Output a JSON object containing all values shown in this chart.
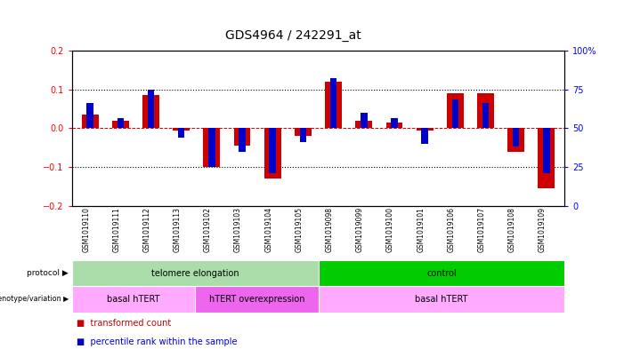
{
  "title": "GDS4964 / 242291_at",
  "samples": [
    "GSM1019110",
    "GSM1019111",
    "GSM1019112",
    "GSM1019113",
    "GSM1019102",
    "GSM1019103",
    "GSM1019104",
    "GSM1019105",
    "GSM1019098",
    "GSM1019099",
    "GSM1019100",
    "GSM1019101",
    "GSM1019106",
    "GSM1019107",
    "GSM1019108",
    "GSM1019109"
  ],
  "red_values": [
    0.035,
    0.02,
    0.085,
    -0.005,
    -0.1,
    -0.045,
    -0.13,
    -0.02,
    0.12,
    0.02,
    0.015,
    -0.005,
    0.09,
    0.09,
    -0.06,
    -0.155
  ],
  "blue_values_norm": [
    0.065,
    0.025,
    0.1,
    -0.025,
    -0.1,
    -0.06,
    -0.115,
    -0.035,
    0.13,
    0.04,
    0.025,
    -0.04,
    0.075,
    0.065,
    -0.048,
    -0.115
  ],
  "ylim": [
    -0.2,
    0.2
  ],
  "yticks_left": [
    -0.2,
    -0.1,
    0.0,
    0.1,
    0.2
  ],
  "right_tick_positions": [
    -0.2,
    -0.1,
    0.0,
    0.1,
    0.2
  ],
  "right_tick_labels": [
    "0",
    "25",
    "50",
    "75",
    "100%"
  ],
  "protocol_groups": [
    {
      "label": "telomere elongation",
      "start": 0,
      "end": 8,
      "color": "#aaddaa"
    },
    {
      "label": "control",
      "start": 8,
      "end": 16,
      "color": "#00cc00"
    }
  ],
  "genotype_groups": [
    {
      "label": "basal hTERT",
      "start": 0,
      "end": 4,
      "color": "#ffaaff"
    },
    {
      "label": "hTERT overexpression",
      "start": 4,
      "end": 8,
      "color": "#ee66ee"
    },
    {
      "label": "basal hTERT",
      "start": 8,
      "end": 16,
      "color": "#ffaaff"
    }
  ],
  "red_color": "#cc0000",
  "blue_color": "#0000cc",
  "hline_color": "#cc0000",
  "sample_bg": "#cccccc",
  "fig_width": 7.01,
  "fig_height": 3.93,
  "dpi": 100
}
